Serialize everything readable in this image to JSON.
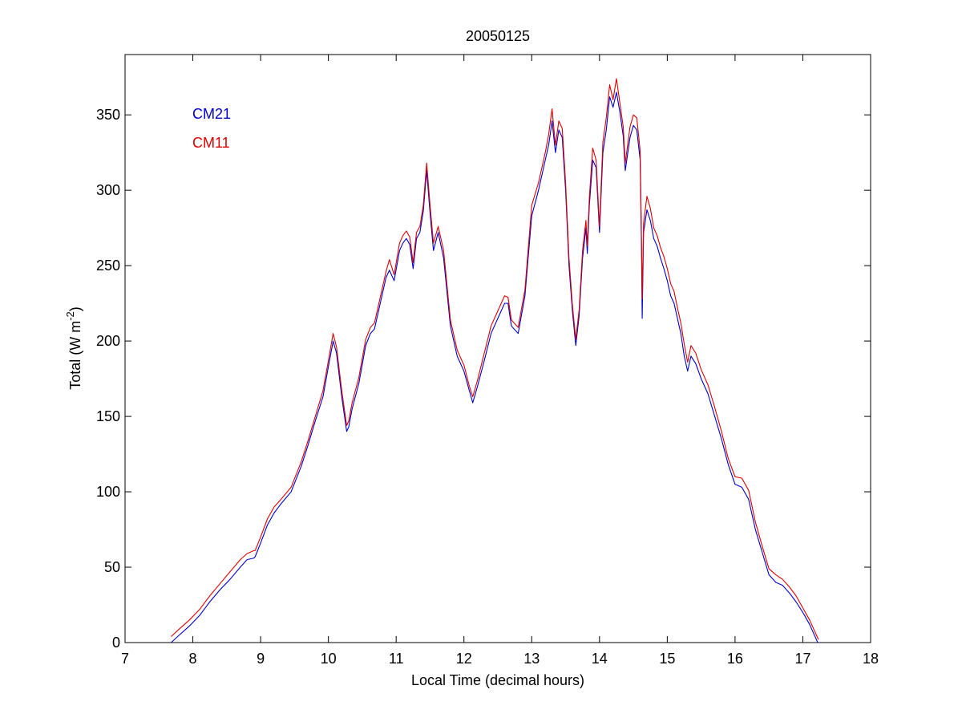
{
  "chart_data": {
    "type": "line",
    "title": "20050125",
    "xlabel": "Local Time (decimal hours)",
    "ylabel": {
      "main": "Total (W m",
      "sup": "-2",
      "close": ")"
    },
    "xlim": [
      7,
      18
    ],
    "ylim": [
      0,
      390
    ],
    "x_ticks": [
      7,
      8,
      9,
      10,
      11,
      12,
      13,
      14,
      15,
      16,
      17,
      18
    ],
    "y_ticks": [
      0,
      50,
      100,
      150,
      200,
      250,
      300,
      350
    ],
    "grid": false,
    "legend_position": "top-left",
    "series": [
      {
        "name": "CM21",
        "color": "#0000cc",
        "points": [
          [
            7.68,
            0
          ],
          [
            7.8,
            5
          ],
          [
            7.95,
            11
          ],
          [
            8.1,
            18
          ],
          [
            8.25,
            27
          ],
          [
            8.4,
            35
          ],
          [
            8.55,
            42
          ],
          [
            8.7,
            50
          ],
          [
            8.8,
            55
          ],
          [
            8.9,
            56
          ],
          [
            8.92,
            57
          ],
          [
            9.0,
            66
          ],
          [
            9.1,
            78
          ],
          [
            9.2,
            86
          ],
          [
            9.3,
            92
          ],
          [
            9.45,
            100
          ],
          [
            9.6,
            117
          ],
          [
            9.7,
            131
          ],
          [
            9.8,
            146
          ],
          [
            9.92,
            163
          ],
          [
            10.0,
            183
          ],
          [
            10.07,
            200
          ],
          [
            10.12,
            192
          ],
          [
            10.2,
            162
          ],
          [
            10.27,
            140
          ],
          [
            10.3,
            143
          ],
          [
            10.35,
            155
          ],
          [
            10.45,
            172
          ],
          [
            10.55,
            197
          ],
          [
            10.62,
            205
          ],
          [
            10.68,
            208
          ],
          [
            10.75,
            222
          ],
          [
            10.85,
            242
          ],
          [
            10.9,
            247
          ],
          [
            10.97,
            240
          ],
          [
            11.05,
            260
          ],
          [
            11.1,
            265
          ],
          [
            11.15,
            268
          ],
          [
            11.2,
            264
          ],
          [
            11.25,
            248
          ],
          [
            11.3,
            268
          ],
          [
            11.35,
            272
          ],
          [
            11.4,
            286
          ],
          [
            11.45,
            313
          ],
          [
            11.5,
            285
          ],
          [
            11.55,
            260
          ],
          [
            11.62,
            272
          ],
          [
            11.7,
            255
          ],
          [
            11.8,
            210
          ],
          [
            11.9,
            190
          ],
          [
            12.0,
            180
          ],
          [
            12.08,
            167
          ],
          [
            12.13,
            159
          ],
          [
            12.2,
            170
          ],
          [
            12.3,
            187
          ],
          [
            12.4,
            205
          ],
          [
            12.5,
            215
          ],
          [
            12.6,
            225
          ],
          [
            12.65,
            225
          ],
          [
            12.7,
            210
          ],
          [
            12.8,
            205
          ],
          [
            12.9,
            230
          ],
          [
            13.0,
            283
          ],
          [
            13.1,
            300
          ],
          [
            13.2,
            320
          ],
          [
            13.25,
            330
          ],
          [
            13.3,
            346
          ],
          [
            13.35,
            325
          ],
          [
            13.4,
            340
          ],
          [
            13.45,
            335
          ],
          [
            13.5,
            300
          ],
          [
            13.55,
            250
          ],
          [
            13.6,
            220
          ],
          [
            13.65,
            197
          ],
          [
            13.7,
            217
          ],
          [
            13.75,
            255
          ],
          [
            13.8,
            275
          ],
          [
            13.82,
            258
          ],
          [
            13.85,
            290
          ],
          [
            13.9,
            320
          ],
          [
            13.95,
            315
          ],
          [
            14.0,
            272
          ],
          [
            14.05,
            325
          ],
          [
            14.1,
            340
          ],
          [
            14.15,
            362
          ],
          [
            14.2,
            355
          ],
          [
            14.25,
            365
          ],
          [
            14.3,
            352
          ],
          [
            14.35,
            336
          ],
          [
            14.38,
            313
          ],
          [
            14.45,
            335
          ],
          [
            14.5,
            343
          ],
          [
            14.55,
            340
          ],
          [
            14.6,
            320
          ],
          [
            14.62,
            260
          ],
          [
            14.63,
            215
          ],
          [
            14.65,
            272
          ],
          [
            14.7,
            287
          ],
          [
            14.75,
            280
          ],
          [
            14.8,
            268
          ],
          [
            14.85,
            263
          ],
          [
            14.9,
            255
          ],
          [
            14.95,
            248
          ],
          [
            15.0,
            240
          ],
          [
            15.05,
            230
          ],
          [
            15.1,
            225
          ],
          [
            15.15,
            215
          ],
          [
            15.2,
            205
          ],
          [
            15.25,
            190
          ],
          [
            15.3,
            180
          ],
          [
            15.35,
            190
          ],
          [
            15.42,
            185
          ],
          [
            15.5,
            175
          ],
          [
            15.6,
            165
          ],
          [
            15.7,
            150
          ],
          [
            15.8,
            135
          ],
          [
            15.9,
            118
          ],
          [
            16.0,
            105
          ],
          [
            16.1,
            103
          ],
          [
            16.2,
            95
          ],
          [
            16.3,
            75
          ],
          [
            16.4,
            60
          ],
          [
            16.5,
            45
          ],
          [
            16.6,
            40
          ],
          [
            16.7,
            38
          ],
          [
            16.8,
            33
          ],
          [
            16.9,
            27
          ],
          [
            17.0,
            20
          ],
          [
            17.1,
            12
          ],
          [
            17.2,
            2
          ],
          [
            17.22,
            0
          ]
        ]
      },
      {
        "name": "CM11",
        "color": "#dd0000",
        "points": [
          [
            7.68,
            4
          ],
          [
            7.8,
            9
          ],
          [
            7.95,
            15
          ],
          [
            8.1,
            22
          ],
          [
            8.25,
            31
          ],
          [
            8.4,
            39
          ],
          [
            8.55,
            47
          ],
          [
            8.7,
            55
          ],
          [
            8.8,
            59
          ],
          [
            8.9,
            61
          ],
          [
            8.92,
            61
          ],
          [
            9.0,
            70
          ],
          [
            9.1,
            82
          ],
          [
            9.2,
            90
          ],
          [
            9.3,
            95
          ],
          [
            9.45,
            103
          ],
          [
            9.6,
            120
          ],
          [
            9.7,
            134
          ],
          [
            9.8,
            149
          ],
          [
            9.92,
            167
          ],
          [
            10.0,
            187
          ],
          [
            10.07,
            205
          ],
          [
            10.12,
            196
          ],
          [
            10.2,
            166
          ],
          [
            10.27,
            144
          ],
          [
            10.3,
            147
          ],
          [
            10.35,
            159
          ],
          [
            10.45,
            176
          ],
          [
            10.55,
            201
          ],
          [
            10.62,
            209
          ],
          [
            10.68,
            212
          ],
          [
            10.75,
            226
          ],
          [
            10.85,
            246
          ],
          [
            10.9,
            254
          ],
          [
            10.97,
            244
          ],
          [
            11.05,
            265
          ],
          [
            11.1,
            270
          ],
          [
            11.15,
            273
          ],
          [
            11.2,
            269
          ],
          [
            11.25,
            252
          ],
          [
            11.3,
            272
          ],
          [
            11.35,
            276
          ],
          [
            11.4,
            290
          ],
          [
            11.45,
            318
          ],
          [
            11.5,
            290
          ],
          [
            11.55,
            265
          ],
          [
            11.62,
            276
          ],
          [
            11.7,
            260
          ],
          [
            11.8,
            214
          ],
          [
            11.9,
            194
          ],
          [
            12.0,
            184
          ],
          [
            12.08,
            170
          ],
          [
            12.13,
            163
          ],
          [
            12.2,
            174
          ],
          [
            12.3,
            192
          ],
          [
            12.4,
            210
          ],
          [
            12.5,
            220
          ],
          [
            12.6,
            230
          ],
          [
            12.65,
            229
          ],
          [
            12.7,
            214
          ],
          [
            12.8,
            209
          ],
          [
            12.9,
            234
          ],
          [
            13.0,
            290
          ],
          [
            13.1,
            305
          ],
          [
            13.2,
            325
          ],
          [
            13.25,
            337
          ],
          [
            13.3,
            354
          ],
          [
            13.35,
            330
          ],
          [
            13.4,
            346
          ],
          [
            13.45,
            341
          ],
          [
            13.5,
            305
          ],
          [
            13.55,
            255
          ],
          [
            13.6,
            224
          ],
          [
            13.65,
            201
          ],
          [
            13.7,
            221
          ],
          [
            13.75,
            260
          ],
          [
            13.8,
            280
          ],
          [
            13.82,
            263
          ],
          [
            13.85,
            295
          ],
          [
            13.9,
            328
          ],
          [
            13.95,
            320
          ],
          [
            14.0,
            276
          ],
          [
            14.05,
            332
          ],
          [
            14.1,
            348
          ],
          [
            14.15,
            370
          ],
          [
            14.2,
            360
          ],
          [
            14.25,
            374
          ],
          [
            14.3,
            358
          ],
          [
            14.35,
            342
          ],
          [
            14.38,
            318
          ],
          [
            14.45,
            342
          ],
          [
            14.5,
            350
          ],
          [
            14.55,
            348
          ],
          [
            14.6,
            326
          ],
          [
            14.62,
            266
          ],
          [
            14.63,
            228
          ],
          [
            14.65,
            278
          ],
          [
            14.7,
            296
          ],
          [
            14.75,
            288
          ],
          [
            14.8,
            275
          ],
          [
            14.85,
            270
          ],
          [
            14.9,
            262
          ],
          [
            14.95,
            256
          ],
          [
            15.0,
            248
          ],
          [
            15.05,
            238
          ],
          [
            15.1,
            233
          ],
          [
            15.15,
            222
          ],
          [
            15.2,
            212
          ],
          [
            15.25,
            198
          ],
          [
            15.3,
            186
          ],
          [
            15.35,
            197
          ],
          [
            15.42,
            192
          ],
          [
            15.5,
            181
          ],
          [
            15.6,
            171
          ],
          [
            15.7,
            156
          ],
          [
            15.8,
            140
          ],
          [
            15.9,
            122
          ],
          [
            16.0,
            110
          ],
          [
            16.1,
            109
          ],
          [
            16.2,
            101
          ],
          [
            16.3,
            80
          ],
          [
            16.4,
            64
          ],
          [
            16.5,
            49
          ],
          [
            16.6,
            45
          ],
          [
            16.7,
            42
          ],
          [
            16.8,
            37
          ],
          [
            16.9,
            31
          ],
          [
            17.0,
            23
          ],
          [
            17.1,
            15
          ],
          [
            17.2,
            5
          ],
          [
            17.23,
            2
          ]
        ]
      }
    ]
  }
}
